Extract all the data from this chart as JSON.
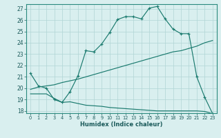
{
  "xlabel": "Humidex (Indice chaleur)",
  "background_color": "#d9efef",
  "grid_color": "#b0d5d5",
  "line_color": "#1a7a6e",
  "xlim": [
    -0.5,
    23.5
  ],
  "ylim": [
    17.8,
    27.4
  ],
  "xticks": [
    0,
    1,
    2,
    3,
    4,
    5,
    6,
    7,
    8,
    9,
    10,
    11,
    12,
    13,
    14,
    15,
    16,
    17,
    18,
    19,
    20,
    21,
    22,
    23
  ],
  "yticks": [
    18,
    19,
    20,
    21,
    22,
    23,
    24,
    25,
    26,
    27
  ],
  "line1_x": [
    0,
    1,
    2,
    3,
    4,
    5,
    6,
    7,
    8,
    9,
    10,
    11,
    12,
    13,
    14,
    15,
    16,
    17,
    18,
    19,
    20,
    21,
    22,
    23
  ],
  "line1_y": [
    21.3,
    20.2,
    20.0,
    19.0,
    18.75,
    19.7,
    21.1,
    23.3,
    23.2,
    23.9,
    24.9,
    26.05,
    26.3,
    26.3,
    26.1,
    27.05,
    27.2,
    26.1,
    25.2,
    24.8,
    24.8,
    21.0,
    19.2,
    17.75
  ],
  "line2_x": [
    0,
    1,
    2,
    3,
    4,
    5,
    6,
    7,
    8,
    9,
    10,
    11,
    12,
    13,
    14,
    15,
    16,
    17,
    18,
    19,
    20,
    21,
    22,
    23
  ],
  "line2_y": [
    19.9,
    20.1,
    20.2,
    20.3,
    20.5,
    20.65,
    20.8,
    21.0,
    21.2,
    21.4,
    21.6,
    21.8,
    22.0,
    22.2,
    22.4,
    22.6,
    22.8,
    23.0,
    23.2,
    23.3,
    23.5,
    23.7,
    24.0,
    24.2
  ],
  "line3_x": [
    0,
    1,
    2,
    3,
    4,
    5,
    6,
    7,
    8,
    9,
    10,
    11,
    12,
    13,
    14,
    15,
    16,
    17,
    18,
    19,
    20,
    21,
    22,
    23
  ],
  "line3_y": [
    19.5,
    19.5,
    19.5,
    19.1,
    18.75,
    18.8,
    18.65,
    18.5,
    18.45,
    18.4,
    18.3,
    18.25,
    18.2,
    18.15,
    18.1,
    18.05,
    18.0,
    18.0,
    18.0,
    18.0,
    18.0,
    18.0,
    17.95,
    17.75
  ]
}
